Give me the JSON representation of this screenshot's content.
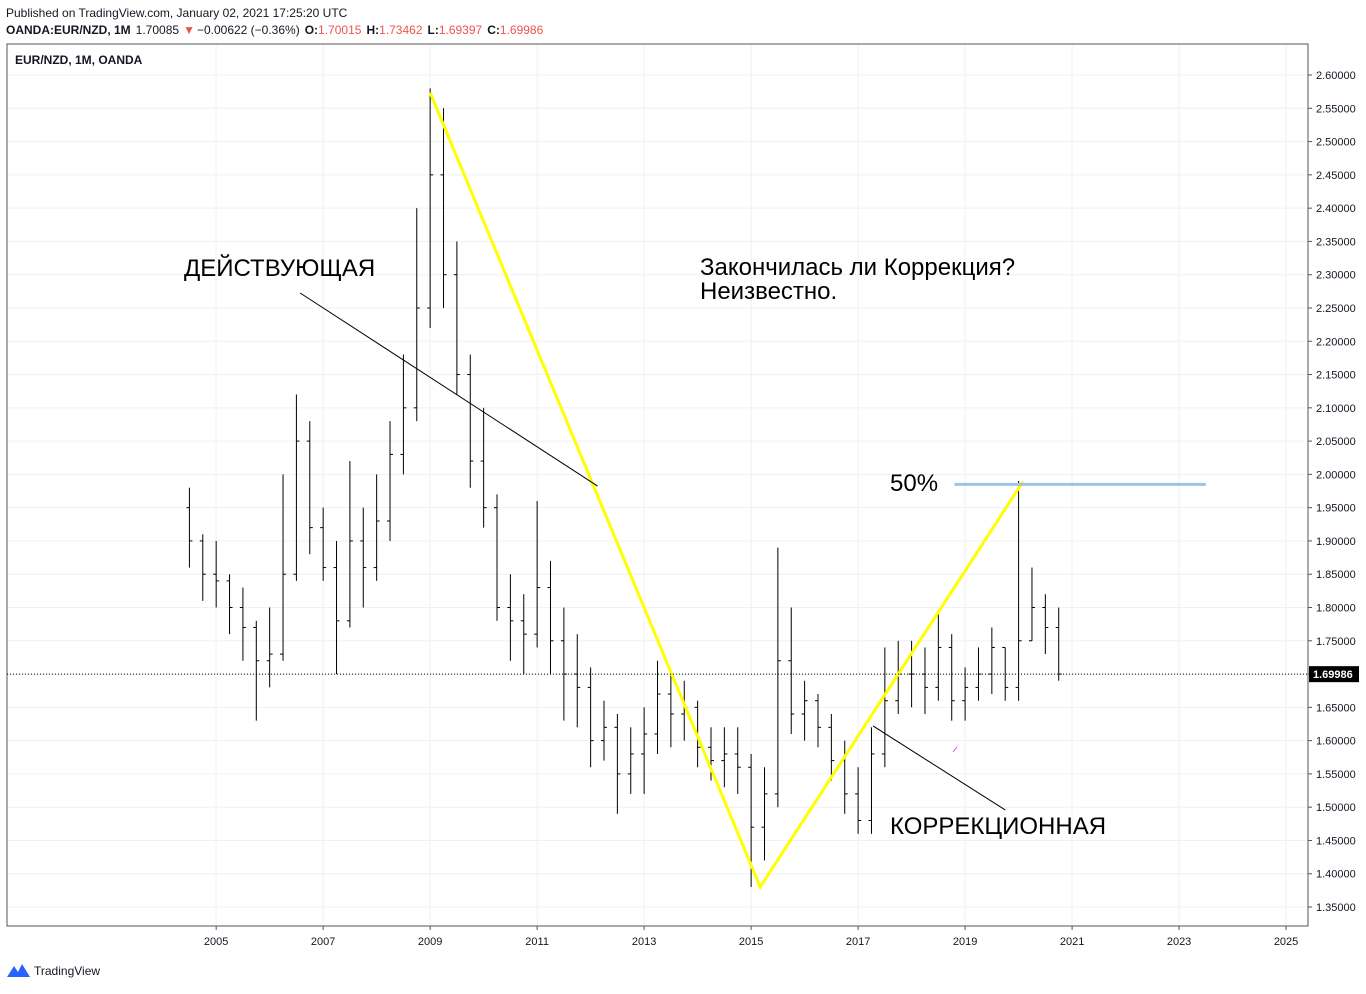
{
  "header": {
    "published": "Published on TradingView.com, January 02, 2021 17:25:20 UTC",
    "symbol": "OANDA:EUR/NZD, 1M",
    "price": "1.70085",
    "arrow": "▼",
    "change": "−0.00622 (−0.36%)",
    "ohlc": [
      {
        "label": "O:",
        "value": "1.70015"
      },
      {
        "label": "H:",
        "value": "1.73462"
      },
      {
        "label": "L:",
        "value": "1.69397"
      },
      {
        "label": "C:",
        "value": "1.69986"
      }
    ]
  },
  "footer": {
    "brand": "TradingView"
  },
  "chart_data": {
    "type": "ohlc",
    "legend": "EUR/NZD, 1M, OANDA",
    "color": "#000000",
    "grid": true,
    "x": [
      2004.5,
      2004.75,
      2005.0,
      2005.25,
      2005.5,
      2005.75,
      2006.0,
      2006.25,
      2006.5,
      2006.75,
      2007.0,
      2007.25,
      2007.5,
      2007.75,
      2008.0,
      2008.25,
      2008.5,
      2008.75,
      2009.0,
      2009.25,
      2009.5,
      2009.75,
      2010.0,
      2010.25,
      2010.5,
      2010.75,
      2011.0,
      2011.25,
      2011.5,
      2011.75,
      2012.0,
      2012.25,
      2012.5,
      2012.75,
      2013.0,
      2013.25,
      2013.5,
      2013.75,
      2014.0,
      2014.25,
      2014.5,
      2014.75,
      2015.0,
      2015.25,
      2015.5,
      2015.75,
      2016.0,
      2016.25,
      2016.5,
      2016.75,
      2017.0,
      2017.25,
      2017.5,
      2017.75,
      2018.0,
      2018.25,
      2018.5,
      2018.75,
      2019.0,
      2019.25,
      2019.5,
      2019.75,
      2020.0,
      2020.25,
      2020.5,
      2020.75
    ],
    "open": [
      1.95,
      1.9,
      1.85,
      1.84,
      1.8,
      1.77,
      1.72,
      1.73,
      1.85,
      2.05,
      1.92,
      1.86,
      1.78,
      1.9,
      1.86,
      1.93,
      2.03,
      2.1,
      2.25,
      2.45,
      2.3,
      2.15,
      2.02,
      1.95,
      1.8,
      1.78,
      1.76,
      1.83,
      1.75,
      1.7,
      1.68,
      1.6,
      1.62,
      1.55,
      1.58,
      1.61,
      1.67,
      1.64,
      1.65,
      1.59,
      1.57,
      1.58,
      1.56,
      1.47,
      1.52,
      1.72,
      1.64,
      1.66,
      1.62,
      1.57,
      1.52,
      1.48,
      1.58,
      1.66,
      1.7,
      1.7,
      1.68,
      1.74,
      1.66,
      1.68,
      1.7,
      1.74,
      1.68,
      1.75,
      1.8,
      1.77
    ],
    "high": [
      1.98,
      1.91,
      1.9,
      1.85,
      1.83,
      1.78,
      1.8,
      2.0,
      2.12,
      2.08,
      1.95,
      1.9,
      2.02,
      1.95,
      2.0,
      2.08,
      2.18,
      2.4,
      2.58,
      2.55,
      2.35,
      2.18,
      2.1,
      1.97,
      1.85,
      1.82,
      1.96,
      1.87,
      1.8,
      1.76,
      1.71,
      1.66,
      1.64,
      1.62,
      1.65,
      1.72,
      1.7,
      1.69,
      1.66,
      1.62,
      1.62,
      1.62,
      1.58,
      1.56,
      1.89,
      1.8,
      1.69,
      1.67,
      1.64,
      1.6,
      1.56,
      1.62,
      1.74,
      1.75,
      1.75,
      1.74,
      1.79,
      1.76,
      1.71,
      1.74,
      1.77,
      1.74,
      1.99,
      1.86,
      1.82,
      1.8
    ],
    "low": [
      1.86,
      1.81,
      1.8,
      1.76,
      1.72,
      1.63,
      1.68,
      1.72,
      1.84,
      1.88,
      1.84,
      1.7,
      1.77,
      1.8,
      1.84,
      1.9,
      2.0,
      2.08,
      2.22,
      2.25,
      2.12,
      1.98,
      1.92,
      1.78,
      1.72,
      1.7,
      1.74,
      1.7,
      1.63,
      1.62,
      1.56,
      1.57,
      1.49,
      1.52,
      1.52,
      1.58,
      1.59,
      1.6,
      1.56,
      1.54,
      1.53,
      1.52,
      1.38,
      1.42,
      1.5,
      1.61,
      1.6,
      1.59,
      1.54,
      1.49,
      1.46,
      1.46,
      1.56,
      1.64,
      1.65,
      1.64,
      1.66,
      1.63,
      1.63,
      1.66,
      1.67,
      1.66,
      1.66,
      1.75,
      1.73,
      1.69
    ],
    "close": [
      1.9,
      1.85,
      1.84,
      1.8,
      1.77,
      1.72,
      1.73,
      1.85,
      2.05,
      1.92,
      1.86,
      1.78,
      1.9,
      1.86,
      1.93,
      2.03,
      2.1,
      2.25,
      2.45,
      2.3,
      2.15,
      2.02,
      1.95,
      1.8,
      1.78,
      1.76,
      1.83,
      1.75,
      1.7,
      1.68,
      1.6,
      1.62,
      1.55,
      1.58,
      1.61,
      1.67,
      1.64,
      1.65,
      1.59,
      1.57,
      1.58,
      1.56,
      1.47,
      1.52,
      1.72,
      1.64,
      1.66,
      1.62,
      1.57,
      1.52,
      1.48,
      1.58,
      1.66,
      1.7,
      1.7,
      1.68,
      1.74,
      1.66,
      1.68,
      1.7,
      1.74,
      1.68,
      1.75,
      1.8,
      1.77,
      1.7
    ],
    "xlim": [
      2001.09,
      2025.41
    ],
    "ylim": [
      1.3215,
      2.6466
    ],
    "xticks": [
      2005,
      2007,
      2009,
      2011,
      2013,
      2015,
      2017,
      2019,
      2021,
      2023,
      2025
    ],
    "yticks": [
      {
        "value": 1.35,
        "label": "1.35000"
      },
      {
        "value": 1.4,
        "label": "1.40000"
      },
      {
        "value": 1.45,
        "label": "1.45000"
      },
      {
        "value": 1.5,
        "label": "1.50000"
      },
      {
        "value": 1.55,
        "label": "1.55000"
      },
      {
        "value": 1.6,
        "label": "1.60000"
      },
      {
        "value": 1.65,
        "label": "1.65000"
      },
      {
        "value": 1.7,
        "label": "1.70000"
      },
      {
        "value": 1.75,
        "label": "1.75000"
      },
      {
        "value": 1.8,
        "label": "1.80000"
      },
      {
        "value": 1.85,
        "label": "1.85000"
      },
      {
        "value": 1.9,
        "label": "1.90000"
      },
      {
        "value": 1.95,
        "label": "1.95000"
      },
      {
        "value": 2.0,
        "label": "2.00000"
      },
      {
        "value": 2.05,
        "label": "2.05000"
      },
      {
        "value": 2.1,
        "label": "2.10000"
      },
      {
        "value": 2.15,
        "label": "2.15000"
      },
      {
        "value": 2.2,
        "label": "2.20000"
      },
      {
        "value": 2.25,
        "label": "2.25000"
      },
      {
        "value": 2.3,
        "label": "2.30000"
      },
      {
        "value": 2.35,
        "label": "2.35000"
      },
      {
        "value": 2.4,
        "label": "2.40000"
      },
      {
        "value": 2.45,
        "label": "2.45000"
      },
      {
        "value": 2.5,
        "label": "2.50000"
      },
      {
        "value": 2.55,
        "label": "2.55000"
      },
      {
        "value": 2.6,
        "label": "2.60000"
      }
    ],
    "last_price": {
      "value": 1.69986,
      "label": "1.69986"
    },
    "drawings": [
      {
        "color": "#ffff00",
        "x": [
          2009.0,
          2015.17,
          2020.08
        ],
        "y": [
          2.5735,
          1.38,
          1.989
        ]
      },
      {
        "color": "#9dc3e6",
        "x": [
          2018.8,
          2023.5
        ],
        "y": [
          1.985,
          1.985
        ]
      },
      {
        "color": "#000000",
        "x": [
          2006.57,
          2012.13
        ],
        "y": [
          2.2725,
          1.9825
        ]
      },
      {
        "color": "#000000",
        "x": [
          2017.28,
          2019.75
        ],
        "y": [
          1.622,
          1.4958
        ]
      }
    ],
    "annotations": [
      "ДЕЙСТВУЮЩАЯ",
      "Закончилась ли Коррекция?",
      "Неизвестно.",
      "50%",
      "КОРРЕКЦИОННАЯ"
    ]
  }
}
